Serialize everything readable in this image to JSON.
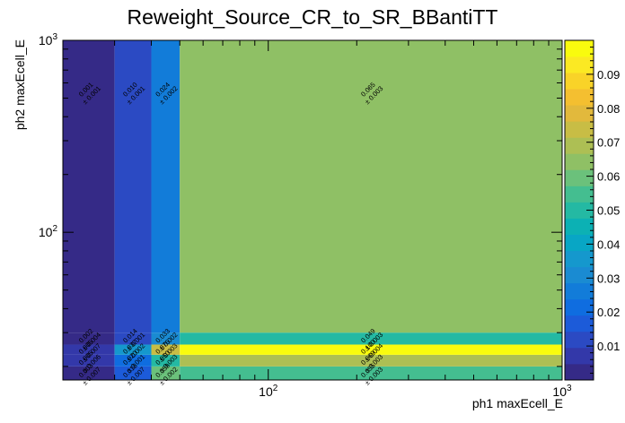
{
  "chart_data": {
    "type": "heatmap",
    "title": "Reweight_Source_CR_to_SR_BBantiTT",
    "xlabel": "ph1 maxEcell_E",
    "ylabel": "ph2 maxEcell_E",
    "x_scale": "log",
    "y_scale": "log",
    "xlim": [
      20,
      1000
    ],
    "ylim": [
      17,
      1000
    ],
    "x_ticks": [
      {
        "value": 100,
        "base": "10",
        "exp": "2"
      },
      {
        "value": 1000,
        "base": "10",
        "exp": "3"
      }
    ],
    "y_ticks": [
      {
        "value": 100,
        "base": "10",
        "exp": "2"
      },
      {
        "value": 1000,
        "base": "10",
        "exp": "3"
      }
    ],
    "x_edges": [
      20,
      30,
      40,
      50,
      1000
    ],
    "y_edges": [
      17,
      20,
      23,
      26,
      30,
      1000
    ],
    "z_range": [
      0,
      0.1
    ],
    "colorbar_ticks": [
      "0.01",
      "0.02",
      "0.03",
      "0.04",
      "0.05",
      "0.06",
      "0.07",
      "0.08",
      "0.09"
    ],
    "colorbar_values": [
      0.01,
      0.02,
      0.03,
      0.04,
      0.05,
      0.06,
      0.07,
      0.08,
      0.09
    ],
    "palette": [
      "#352a87",
      "#3338a9",
      "#2b4ac3",
      "#1c5bd9",
      "#0f6de0",
      "#127cd9",
      "#1a8bd2",
      "#1598cd",
      "#08a6c5",
      "#0cb1b4",
      "#24b9a3",
      "#44be90",
      "#6bc17b",
      "#8fc065",
      "#adbf54",
      "#c8bd45",
      "#e2b93c",
      "#f4bf30",
      "#f9d328",
      "#fbe923",
      "#f9fb0e"
    ],
    "cells": [
      {
        "xi": 0,
        "yi": 0,
        "z": 0.003,
        "label": "0.003",
        "err": "± 0.007"
      },
      {
        "xi": 1,
        "yi": 0,
        "z": 0.018,
        "label": "0.018",
        "err": "± 0.007"
      },
      {
        "xi": 2,
        "yi": 0,
        "z": 0.059,
        "label": "0.059",
        "err": "± 0.002"
      },
      {
        "xi": 3,
        "yi": 0,
        "z": 0.055,
        "label": "0.055",
        "err": "± 0.003"
      },
      {
        "xi": 0,
        "yi": 1,
        "z": 0.005,
        "label": "0.005",
        "err": "± 0.006"
      },
      {
        "xi": 1,
        "yi": 1,
        "z": 0.02,
        "label": "0.020",
        "err": "± 0.001"
      },
      {
        "xi": 2,
        "yi": 1,
        "z": 0.05,
        "label": "0.050",
        "err": "± 0.003"
      },
      {
        "xi": 3,
        "yi": 1,
        "z": 0.069,
        "label": "0.069",
        "err": "± 0.003"
      },
      {
        "xi": 0,
        "yi": 2,
        "z": 0.005,
        "label": "0.005",
        "err": "± 0.007"
      },
      {
        "xi": 1,
        "yi": 2,
        "z": 0.037,
        "label": "0.037",
        "err": "± 0.002"
      },
      {
        "xi": 2,
        "yi": 2,
        "z": 0.076,
        "label": "0.076",
        "err": "± 0.003"
      },
      {
        "xi": 3,
        "yi": 2,
        "z": 0.1,
        "label": "0.100",
        "err": "± 0.004"
      },
      {
        "xi": 0,
        "yi": 3,
        "z": 0.002,
        "label": "0.002",
        "err": "± 0.004"
      },
      {
        "xi": 1,
        "yi": 3,
        "z": 0.014,
        "label": "0.014",
        "err": "± 0.001"
      },
      {
        "xi": 2,
        "yi": 3,
        "z": 0.033,
        "label": "0.033",
        "err": "± 0.002"
      },
      {
        "xi": 3,
        "yi": 3,
        "z": 0.049,
        "label": "0.049",
        "err": "± 0.003"
      },
      {
        "xi": 0,
        "yi": 4,
        "z": 0.001,
        "label": "0.001",
        "err": "± 0.001"
      },
      {
        "xi": 1,
        "yi": 4,
        "z": 0.01,
        "label": "0.010",
        "err": "± 0.001"
      },
      {
        "xi": 2,
        "yi": 4,
        "z": 0.024,
        "label": "0.024",
        "err": "± 0.002"
      },
      {
        "xi": 3,
        "yi": 4,
        "z": 0.065,
        "label": "0.065",
        "err": "± 0.003"
      }
    ]
  }
}
